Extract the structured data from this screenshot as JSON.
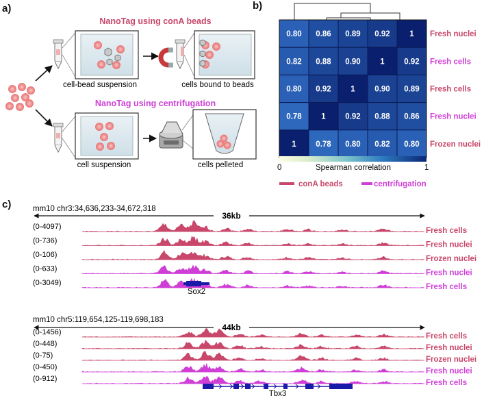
{
  "panel_a": {
    "letter": "a)",
    "title_top": "NanoTag using conA beads",
    "title_bottom": "NanoTag using centrifugation",
    "step1_top": "cell-bead suspension",
    "step2_top": "cells bound to beads",
    "step1_bottom": "cell suspension",
    "step2_bottom": "cells pelleted",
    "colors": {
      "conA": "#c8476a",
      "centri": "#cf3fd6"
    }
  },
  "panel_b": {
    "letter": "b)",
    "row_labels": [
      "Fresh nuclei",
      "Fresh cells",
      "Fresh cells",
      "Fresh nuclei",
      "Frozen nuclei"
    ],
    "row_groups": [
      "conA",
      "centri",
      "conA",
      "centri",
      "conA"
    ],
    "matrix": [
      [
        0.8,
        0.86,
        0.89,
        0.92,
        1
      ],
      [
        0.82,
        0.88,
        0.9,
        1,
        0.92
      ],
      [
        0.8,
        0.92,
        1,
        0.9,
        0.89
      ],
      [
        0.78,
        1,
        0.92,
        0.88,
        0.86
      ],
      [
        1,
        0.78,
        0.8,
        0.82,
        0.8
      ]
    ],
    "matrix_text": [
      [
        "0.80",
        "0.86",
        "0.89",
        "0.92",
        "1"
      ],
      [
        "0.82",
        "0.88",
        "0.90",
        "1",
        "0.92"
      ],
      [
        "0.80",
        "0.92",
        "1",
        "0.90",
        "0.89"
      ],
      [
        "0.78",
        "1",
        "0.92",
        "0.88",
        "0.86"
      ],
      [
        "1",
        "0.78",
        "0.80",
        "0.82",
        "0.80"
      ]
    ],
    "colorbar_min": "0",
    "colorbar_max": "1",
    "colorbar_label": "Spearman correlation",
    "legend": [
      {
        "label": "conA beads",
        "color": "#c8476a"
      },
      {
        "label": "centrifugation",
        "color": "#cf3fd6"
      }
    ]
  },
  "panel_c": {
    "letter": "c)",
    "loci": [
      {
        "coord": "mm10 chr3:34,636,233-34,672,318",
        "span": "36kb",
        "gene": "Sox2",
        "tracks": [
          {
            "range": "(0-4097)",
            "label": "Fresh cells",
            "group": "conA"
          },
          {
            "range": "(0-736)",
            "label": "Fresh nuclei",
            "group": "conA"
          },
          {
            "range": "(0-106)",
            "label": "Frozen nuclei",
            "group": "conA"
          },
          {
            "range": "(0-633)",
            "label": "Fresh nuclei",
            "group": "centri"
          },
          {
            "range": "(0-3049)",
            "label": "Fresh cells",
            "group": "centri"
          }
        ]
      },
      {
        "coord": "mm10 chr5:119,654,125-119,698,183",
        "span": "44kb",
        "gene": "Tbx3",
        "tracks": [
          {
            "range": "(0-1456)",
            "label": "Fresh cells",
            "group": "conA"
          },
          {
            "range": "(0-448)",
            "label": "Fresh nuclei",
            "group": "conA"
          },
          {
            "range": "(0-75)",
            "label": "Frozen nuclei",
            "group": "conA"
          },
          {
            "range": "(0-450)",
            "label": "Fresh nuclei",
            "group": "centri"
          },
          {
            "range": "(0-912)",
            "label": "Fresh cells",
            "group": "centri"
          }
        ]
      }
    ]
  }
}
